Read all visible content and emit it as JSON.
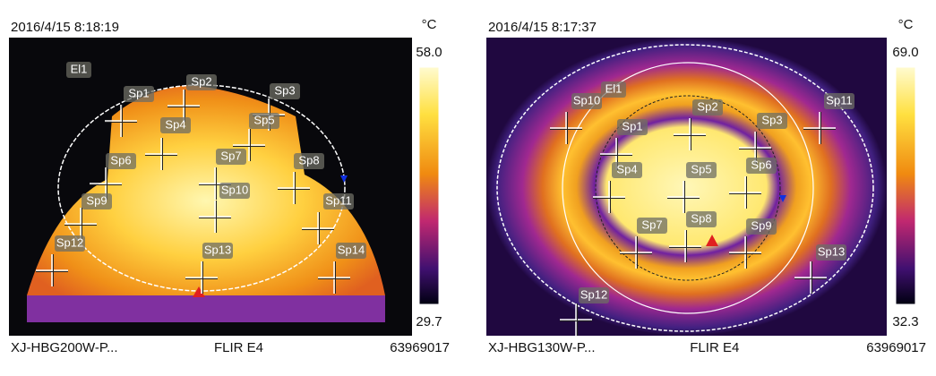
{
  "panels": [
    {
      "timestamp": "2016/4/15 8:18:19",
      "unit": "°C",
      "scale_max": "58.0",
      "scale_min": "29.7",
      "region_label": "El1",
      "spots": [
        "Sp1",
        "Sp2",
        "Sp3",
        "Sp4",
        "Sp5",
        "Sp6",
        "Sp7",
        "Sp8",
        "Sp9",
        "Sp10",
        "Sp11",
        "Sp12",
        "Sp13",
        "Sp14"
      ],
      "model": "XJ-HBG200W-P...",
      "camera": "FLIR E4",
      "serial": "63969017"
    },
    {
      "timestamp": "2016/4/15 8:17:37",
      "unit": "°C",
      "scale_max": "69.0",
      "scale_min": "32.3",
      "region_label": "El1",
      "spots": [
        "Sp1",
        "Sp2",
        "Sp3",
        "Sp4",
        "Sp5",
        "Sp6",
        "Sp7",
        "Sp8",
        "Sp9",
        "Sp10",
        "Sp11",
        "Sp12",
        "Sp13"
      ],
      "model": "XJ-HBG130W-P...",
      "camera": "FLIR E4",
      "serial": "63969017"
    }
  ]
}
